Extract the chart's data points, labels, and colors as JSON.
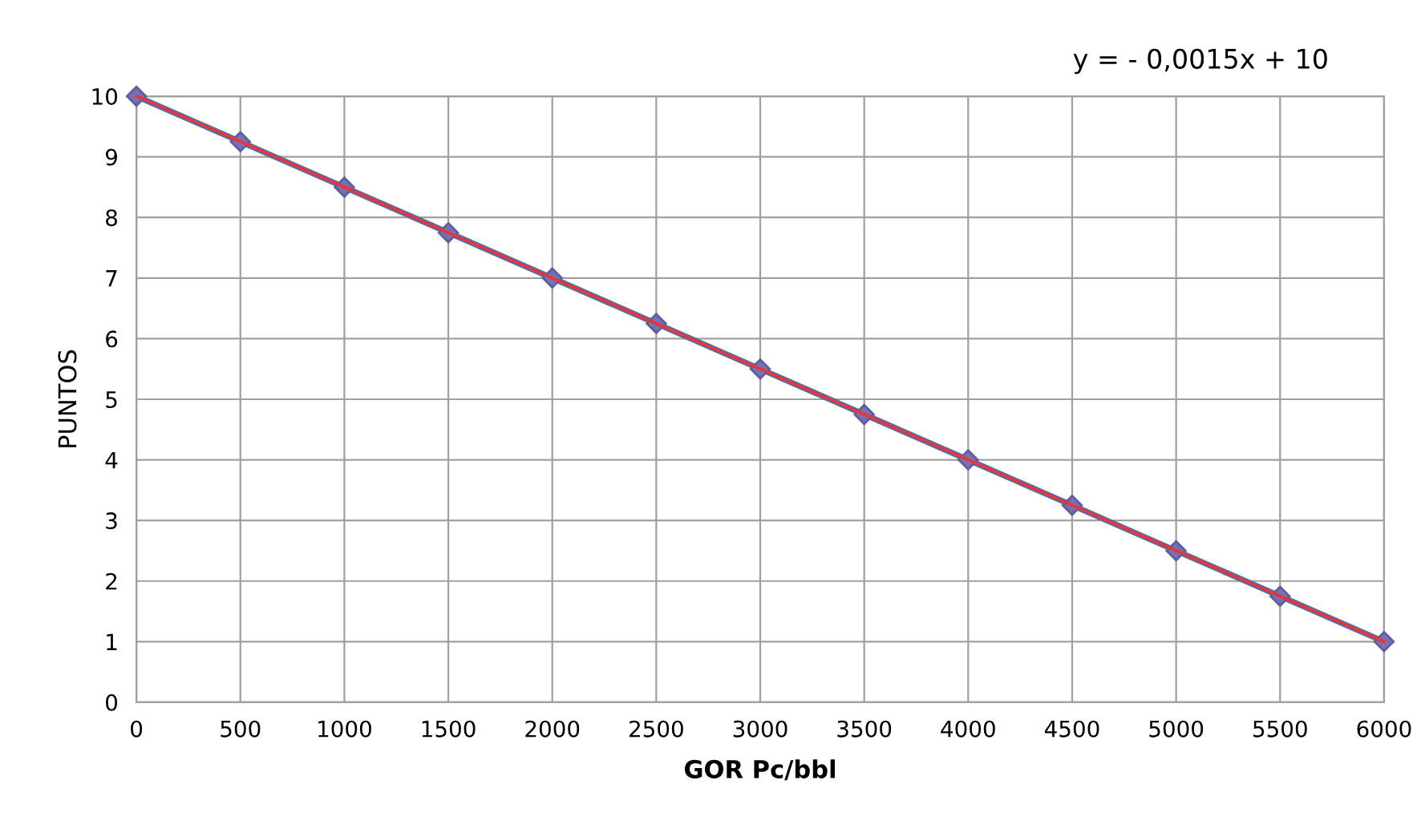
{
  "chart_data": {
    "type": "line",
    "xlabel": "GOR Pc/bbl",
    "ylabel": "PUNTOS",
    "annotations": [
      "y = - 0,0015x + 10"
    ],
    "x": [
      0,
      500,
      1000,
      1500,
      2000,
      2500,
      3000,
      3500,
      4000,
      4500,
      5000,
      5500,
      6000
    ],
    "series": [
      {
        "color": "#4a6fb5",
        "marker": "diamond",
        "values": [
          10,
          9.25,
          8.5,
          7.75,
          7,
          6.25,
          5.5,
          4.75,
          4,
          3.25,
          2.5,
          1.75,
          1
        ]
      },
      {
        "type": "line",
        "color": "#e0393b",
        "marker": "none",
        "x": [
          0,
          6000
        ],
        "values": [
          10,
          1
        ]
      }
    ],
    "xlim": [
      0,
      6000
    ],
    "xticks": [
      0,
      500,
      1000,
      1500,
      2000,
      2500,
      3000,
      3500,
      4000,
      4500,
      5000,
      5500,
      6000
    ],
    "ylim": [
      0,
      10
    ],
    "yticks": [
      0,
      1,
      2,
      3,
      4,
      5,
      6,
      7,
      8,
      9,
      10
    ],
    "grid": true,
    "line_style": "solid"
  }
}
